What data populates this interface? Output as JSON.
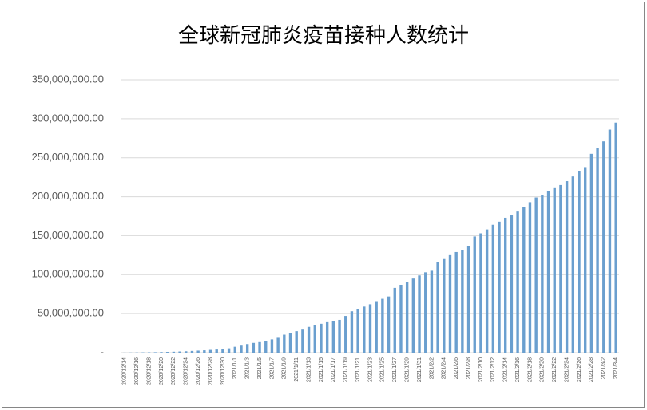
{
  "chart_data": {
    "type": "bar",
    "title": "全球新冠肺炎疫苗接种人数统计",
    "categories": [
      "2020/12/14",
      null,
      "2020/12/16",
      null,
      "2020/12/18",
      null,
      "2020/12/20",
      null,
      "2020/12/22",
      null,
      "2020/12/24",
      null,
      "2020/12/26",
      null,
      "2020/12/28",
      null,
      "2020/12/30",
      null,
      "2021/1/1",
      null,
      "2021/1/3",
      null,
      "2021/1/5",
      null,
      "2021/1/7",
      null,
      "2021/1/9",
      null,
      "2021/1/11",
      null,
      "2021/1/13",
      null,
      "2021/1/15",
      null,
      "2021/1/17",
      null,
      "2021/1/19",
      null,
      "2021/1/21",
      null,
      "2021/1/23",
      null,
      "2021/1/25",
      null,
      "2021/1/27",
      null,
      "2021/1/29",
      null,
      "2021/1/31",
      null,
      "2021/2/2",
      null,
      "2021/2/4",
      null,
      "2021/2/6",
      null,
      "2021/2/8",
      null,
      "2021/2/10",
      null,
      "2021/2/12",
      null,
      "2021/2/14",
      null,
      "2021/2/16",
      null,
      "2021/2/18",
      null,
      "2021/2/20",
      null,
      "2021/2/22",
      null,
      "2021/2/24",
      null,
      "2021/2/26",
      null,
      "2021/2/28",
      null,
      "2021/3/2",
      null,
      "2021/3/4"
    ],
    "values": [
      100000,
      200000,
      300000,
      400000,
      500000,
      600000,
      800000,
      1000000,
      1200000,
      1500000,
      1800000,
      2200000,
      2600000,
      3000000,
      3500000,
      4000000,
      4600000,
      5500000,
      7500000,
      9000000,
      11000000,
      12500000,
      13500000,
      15000000,
      17000000,
      19000000,
      23000000,
      25000000,
      27500000,
      29500000,
      33000000,
      35000000,
      37000000,
      39000000,
      40500000,
      42000000,
      47000000,
      53000000,
      56000000,
      59000000,
      62000000,
      66000000,
      69000000,
      72000000,
      83000000,
      87000000,
      91000000,
      95000000,
      99000000,
      103000000,
      105000000,
      116000000,
      120000000,
      125000000,
      129000000,
      132000000,
      137000000,
      149000000,
      153000000,
      158000000,
      164000000,
      168000000,
      173000000,
      176000000,
      181000000,
      187000000,
      193000000,
      199000000,
      202000000,
      207000000,
      211000000,
      215000000,
      220000000,
      226000000,
      233000000,
      238000000,
      255000000,
      262000000,
      271000000,
      286000000,
      295000000
    ],
    "color": "#6a9fcf",
    "ylim": [
      0,
      350000000
    ],
    "yticks": [
      {
        "value": 0,
        "label": "-"
      },
      {
        "value": 50000000,
        "label": "50,000,000.00"
      },
      {
        "value": 100000000,
        "label": "100,000,000.00"
      },
      {
        "value": 150000000,
        "label": "150,000,000.00"
      },
      {
        "value": 200000000,
        "label": "200,000,000.00"
      },
      {
        "value": 250000000,
        "label": "250,000,000.00"
      },
      {
        "value": 300000000,
        "label": "300,000,000.00"
      },
      {
        "value": 350000000,
        "label": "350,000,000.00"
      }
    ],
    "grid": true
  }
}
